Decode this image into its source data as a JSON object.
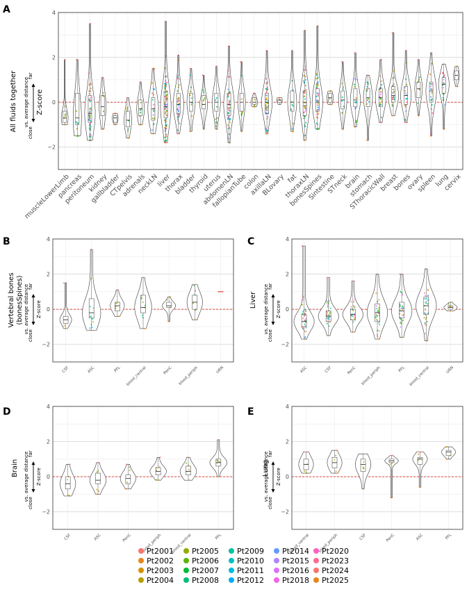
{
  "legend": [
    {
      "name": "Pt2001",
      "color": "#F8766D"
    },
    {
      "name": "Pt2002",
      "color": "#E7861B"
    },
    {
      "name": "Pt2003",
      "color": "#D39200"
    },
    {
      "name": "Pt2004",
      "color": "#B79F00"
    },
    {
      "name": "Pt2005",
      "color": "#93AA00"
    },
    {
      "name": "Pt2006",
      "color": "#5EB300"
    },
    {
      "name": "Pt2007",
      "color": "#00BA38"
    },
    {
      "name": "Pt2008",
      "color": "#00BF74"
    },
    {
      "name": "Pt2009",
      "color": "#00C19F"
    },
    {
      "name": "Pt2010",
      "color": "#00BFC4"
    },
    {
      "name": "Pt2011",
      "color": "#00B9E3"
    },
    {
      "name": "Pt2012",
      "color": "#00ADFA"
    },
    {
      "name": "Pt2014",
      "color": "#619CFF"
    },
    {
      "name": "Pt2015",
      "color": "#AE87FF"
    },
    {
      "name": "Pt2016",
      "color": "#DB72FB"
    },
    {
      "name": "Pt2018",
      "color": "#F564E3"
    },
    {
      "name": "Pt2020",
      "color": "#FF61C3"
    },
    {
      "name": "Pt2023",
      "color": "#FF6C91"
    },
    {
      "name": "Pt2024",
      "color": "#F8766D"
    },
    {
      "name": "Pt2025",
      "color": "#E7861B"
    }
  ],
  "axis_label": {
    "center": "Z-score",
    "far": "far",
    "close": "close",
    "avg": "vs. average distance"
  },
  "chart_data": [
    {
      "id": "A",
      "type": "violin",
      "ylabel": "All fluids together",
      "ylim": [
        -3,
        4
      ],
      "yticks": [
        -2,
        0,
        2,
        4
      ],
      "categories": [
        {
          "name": "muscleLowerLimb",
          "min": -1.0,
          "max": 1.9,
          "q1": -0.9,
          "med": -0.7,
          "q3": -0.4,
          "n": 6
        },
        {
          "name": "pancreas",
          "min": -1.5,
          "max": 1.9,
          "q1": -1.0,
          "med": -0.7,
          "q3": 0.4,
          "n": 10
        },
        {
          "name": "peritoneum",
          "min": -1.7,
          "max": 3.5,
          "q1": -0.9,
          "med": -0.5,
          "q3": 0.3,
          "n": 60
        },
        {
          "name": "kidney",
          "min": -1.2,
          "max": 1.1,
          "q1": -0.6,
          "med": -0.2,
          "q3": 0.3,
          "n": 6
        },
        {
          "name": "gallbladder",
          "min": -1.0,
          "max": -0.5,
          "q1": -0.9,
          "med": -0.7,
          "q3": -0.6,
          "n": 3
        },
        {
          "name": "CTpelvis",
          "min": -1.6,
          "max": 0.2,
          "q1": -1.1,
          "med": -0.8,
          "q3": -0.4,
          "n": 8
        },
        {
          "name": "adrenals",
          "min": -1.0,
          "max": 0.9,
          "q1": -0.6,
          "med": -0.3,
          "q3": 0.1,
          "n": 8
        },
        {
          "name": "neckLN",
          "min": -1.4,
          "max": 1.5,
          "q1": -0.8,
          "med": -0.3,
          "q3": 0.2,
          "n": 20
        },
        {
          "name": "liver",
          "min": -1.8,
          "max": 3.6,
          "q1": -0.7,
          "med": -0.2,
          "q3": 0.5,
          "n": 90
        },
        {
          "name": "thorax",
          "min": -1.4,
          "max": 2.1,
          "q1": -0.5,
          "med": -0.1,
          "q3": 0.4,
          "n": 40
        },
        {
          "name": "bladder",
          "min": -1.3,
          "max": 1.5,
          "q1": -0.4,
          "med": 0.0,
          "q3": 0.4,
          "n": 10
        },
        {
          "name": "thyroid",
          "min": -1.2,
          "max": 1.2,
          "q1": -0.3,
          "med": -0.1,
          "q3": 0.3,
          "n": 8
        },
        {
          "name": "uterus",
          "min": -1.2,
          "max": 1.6,
          "q1": -0.4,
          "med": 0.0,
          "q3": 0.4,
          "n": 10
        },
        {
          "name": "abdomenLN",
          "min": -1.8,
          "max": 2.5,
          "q1": -0.6,
          "med": -0.1,
          "q3": 0.4,
          "n": 45
        },
        {
          "name": "fallopianTube",
          "min": -1.3,
          "max": 1.8,
          "q1": -0.4,
          "med": 0.0,
          "q3": 0.4,
          "n": 8
        },
        {
          "name": "colon",
          "min": -0.2,
          "max": 0.4,
          "q1": -0.1,
          "med": 0.0,
          "q3": 0.2,
          "n": 5
        },
        {
          "name": "axillaLN",
          "min": -1.4,
          "max": 2.3,
          "q1": -0.5,
          "med": 0.0,
          "q3": 0.4,
          "n": 45
        },
        {
          "name": "BLovary",
          "min": -0.1,
          "max": 0.2,
          "q1": 0.0,
          "med": 0.1,
          "q3": 0.1,
          "n": 2
        },
        {
          "name": "fat",
          "min": -1.3,
          "max": 2.3,
          "q1": -0.4,
          "med": 0.0,
          "q3": 0.5,
          "n": 12
        },
        {
          "name": "thoraxLN",
          "min": -1.7,
          "max": 3.2,
          "q1": -0.6,
          "med": 0.0,
          "q3": 0.5,
          "n": 50
        },
        {
          "name": "bonesSpines",
          "min": -1.2,
          "max": 3.4,
          "q1": -0.4,
          "med": 0.0,
          "q3": 0.6,
          "n": 40
        },
        {
          "name": "Sintestine",
          "min": -0.1,
          "max": 0.5,
          "q1": 0.0,
          "med": 0.2,
          "q3": 0.4,
          "n": 4
        },
        {
          "name": "STneck",
          "min": -1.2,
          "max": 1.8,
          "q1": -0.3,
          "med": 0.1,
          "q3": 0.5,
          "n": 10
        },
        {
          "name": "brain",
          "min": -1.1,
          "max": 2.2,
          "q1": -0.2,
          "med": 0.1,
          "q3": 0.6,
          "n": 15
        },
        {
          "name": "stomach",
          "min": -1.7,
          "max": 1.2,
          "q1": -0.2,
          "med": 0.2,
          "q3": 0.6,
          "n": 12
        },
        {
          "name": "SThoracicWall",
          "min": -0.9,
          "max": 1.9,
          "q1": -0.2,
          "med": 0.2,
          "q3": 0.6,
          "n": 25
        },
        {
          "name": "breast",
          "min": -0.6,
          "max": 3.1,
          "q1": 0.0,
          "med": 0.3,
          "q3": 0.7,
          "n": 25
        },
        {
          "name": "bones",
          "min": -0.9,
          "max": 2.3,
          "q1": -0.1,
          "med": 0.3,
          "q3": 0.7,
          "n": 20
        },
        {
          "name": "ovary",
          "min": -0.6,
          "max": 1.9,
          "q1": 0.2,
          "med": 0.6,
          "q3": 0.9,
          "n": 8
        },
        {
          "name": "spleen",
          "min": -1.5,
          "max": 2.2,
          "q1": 0.0,
          "med": 0.5,
          "q3": 0.9,
          "n": 20
        },
        {
          "name": "lung",
          "min": -1.2,
          "max": 1.7,
          "q1": 0.4,
          "med": 0.8,
          "q3": 1.1,
          "n": 20
        },
        {
          "name": "cervix",
          "min": 0.7,
          "max": 1.6,
          "q1": 1.0,
          "med": 1.2,
          "q3": 1.4,
          "n": 3
        }
      ]
    },
    {
      "id": "B",
      "type": "violin",
      "ylabel": "Vertebral bones",
      "ylabel2": "(bonesSpines)",
      "ylim": [
        -3,
        4
      ],
      "yticks": [
        -2,
        0,
        2,
        4
      ],
      "categories": [
        {
          "name": "CSF",
          "min": -1.1,
          "max": 1.5,
          "q1": -0.8,
          "med": -0.6,
          "q3": -0.4,
          "n": 3
        },
        {
          "name": "ASC",
          "min": -1.2,
          "max": 3.4,
          "q1": -0.5,
          "med": -0.2,
          "q3": 0.6,
          "n": 12
        },
        {
          "name": "PFL",
          "min": -0.4,
          "max": 1.1,
          "q1": -0.1,
          "med": 0.2,
          "q3": 0.4,
          "n": 6
        },
        {
          "name": "blood_central",
          "min": -1.1,
          "max": 1.8,
          "q1": -0.2,
          "med": 0.1,
          "q3": 0.8,
          "n": 10
        },
        {
          "name": "PeriC",
          "min": -0.7,
          "max": 0.7,
          "q1": 0.1,
          "med": 0.2,
          "q3": 0.4,
          "n": 5
        },
        {
          "name": "blood_periph",
          "min": -0.6,
          "max": 1.4,
          "q1": 0.0,
          "med": 0.4,
          "q3": 0.8,
          "n": 8
        },
        {
          "name": "URN",
          "min": 1.0,
          "max": 1.0,
          "q1": 1.0,
          "med": 1.0,
          "q3": 1.0,
          "n": 1
        }
      ]
    },
    {
      "id": "C",
      "type": "violin",
      "ylabel": "Liver",
      "ylim": [
        -3,
        4
      ],
      "yticks": [
        -2,
        0,
        2,
        4
      ],
      "categories": [
        {
          "name": "ASC",
          "min": -1.7,
          "max": 3.6,
          "q1": -1.0,
          "med": -0.7,
          "q3": -0.3,
          "n": 40
        },
        {
          "name": "CSF",
          "min": -1.5,
          "max": 1.8,
          "q1": -0.7,
          "med": -0.4,
          "q3": -0.1,
          "n": 30
        },
        {
          "name": "PeriC",
          "min": -1.3,
          "max": 1.6,
          "q1": -0.6,
          "med": -0.3,
          "q3": 0.0,
          "n": 25
        },
        {
          "name": "blood_periph",
          "min": -1.7,
          "max": 2.0,
          "q1": -0.7,
          "med": -0.2,
          "q3": 0.3,
          "n": 30
        },
        {
          "name": "PFL",
          "min": -1.6,
          "max": 2.0,
          "q1": -0.5,
          "med": -0.1,
          "q3": 0.4,
          "n": 30
        },
        {
          "name": "blood_central",
          "min": -1.8,
          "max": 2.3,
          "q1": -0.3,
          "med": 0.2,
          "q3": 0.7,
          "n": 30
        },
        {
          "name": "URN",
          "min": -0.1,
          "max": 0.4,
          "q1": 0.0,
          "med": 0.1,
          "q3": 0.2,
          "n": 6
        }
      ]
    },
    {
      "id": "D",
      "type": "violin",
      "ylabel": "Brain",
      "ylim": [
        -3,
        4
      ],
      "yticks": [
        -2,
        0,
        2,
        4
      ],
      "categories": [
        {
          "name": "CSF",
          "min": -1.1,
          "max": 0.7,
          "q1": -0.7,
          "med": -0.4,
          "q3": 0.0,
          "n": 5
        },
        {
          "name": "ASC",
          "min": -1.0,
          "max": 0.8,
          "q1": -0.4,
          "med": -0.2,
          "q3": 0.2,
          "n": 6
        },
        {
          "name": "PeriC",
          "min": -0.7,
          "max": 0.7,
          "q1": -0.4,
          "med": -0.1,
          "q3": 0.1,
          "n": 5
        },
        {
          "name": "blood_periph",
          "min": -0.2,
          "max": 1.1,
          "q1": 0.1,
          "med": 0.3,
          "q3": 0.5,
          "n": 6
        },
        {
          "name": "blood_central",
          "min": -0.2,
          "max": 1.1,
          "q1": 0.1,
          "med": 0.3,
          "q3": 0.6,
          "n": 6
        },
        {
          "name": "PFL",
          "min": 0.0,
          "max": 2.1,
          "q1": 0.6,
          "med": 0.8,
          "q3": 1.0,
          "n": 7
        }
      ]
    },
    {
      "id": "E",
      "type": "violin",
      "ylabel": "Lung",
      "ylim": [
        -3,
        4
      ],
      "yticks": [
        -2,
        0,
        2,
        4
      ],
      "categories": [
        {
          "name": "blood_central",
          "min": 0.2,
          "max": 1.4,
          "q1": 0.4,
          "med": 0.7,
          "q3": 1.0,
          "n": 5
        },
        {
          "name": "blood_periph",
          "min": 0.2,
          "max": 1.5,
          "q1": 0.5,
          "med": 0.8,
          "q3": 1.1,
          "n": 5
        },
        {
          "name": "CSF",
          "min": -0.7,
          "max": 1.3,
          "q1": 0.3,
          "med": 0.7,
          "q3": 1.0,
          "n": 6
        },
        {
          "name": "PeriC",
          "min": -1.2,
          "max": 1.2,
          "q1": 0.8,
          "med": 0.9,
          "q3": 1.0,
          "n": 4
        },
        {
          "name": "ASC",
          "min": -0.6,
          "max": 1.4,
          "q1": 0.7,
          "med": 1.0,
          "q3": 1.1,
          "n": 5
        },
        {
          "name": "PFL",
          "min": 1.0,
          "max": 1.7,
          "q1": 1.2,
          "med": 1.4,
          "q3": 1.5,
          "n": 4
        }
      ]
    }
  ]
}
